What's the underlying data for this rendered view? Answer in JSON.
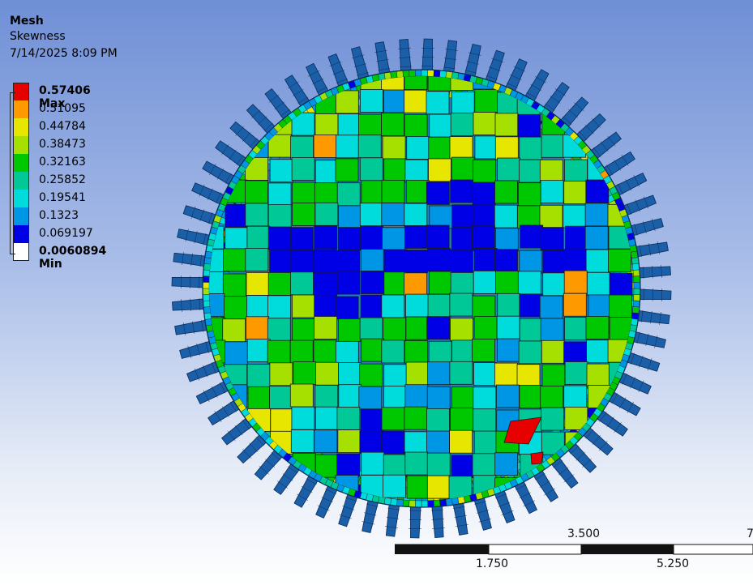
{
  "info": {
    "title": "Mesh",
    "quantity": "Skewness",
    "timestamp": "7/14/2025 8:09 PM"
  },
  "legend": {
    "entries": [
      {
        "label": "0.57406 Max",
        "color": "#e60000",
        "strong": true
      },
      {
        "label": "0.51095",
        "color": "#ff9900"
      },
      {
        "label": "0.44784",
        "color": "#e6e600"
      },
      {
        "label": "0.38473",
        "color": "#a6e000"
      },
      {
        "label": "0.32163",
        "color": "#00c800"
      },
      {
        "label": "0.25852",
        "color": "#00c896"
      },
      {
        "label": "0.19541",
        "color": "#00dcdc"
      },
      {
        "label": "0.1323",
        "color": "#0096e6"
      },
      {
        "label": "0.069197",
        "color": "#0000e6"
      },
      {
        "label": "0.0060894 Min",
        "color": "#ffffff",
        "strong": true
      }
    ]
  },
  "scale": {
    "labels": [
      "1.750",
      "3.500",
      "5.250",
      "7"
    ]
  },
  "colors": {
    "mesh_line": "#1a1a1a",
    "gear_base": "#1a5fa8"
  }
}
